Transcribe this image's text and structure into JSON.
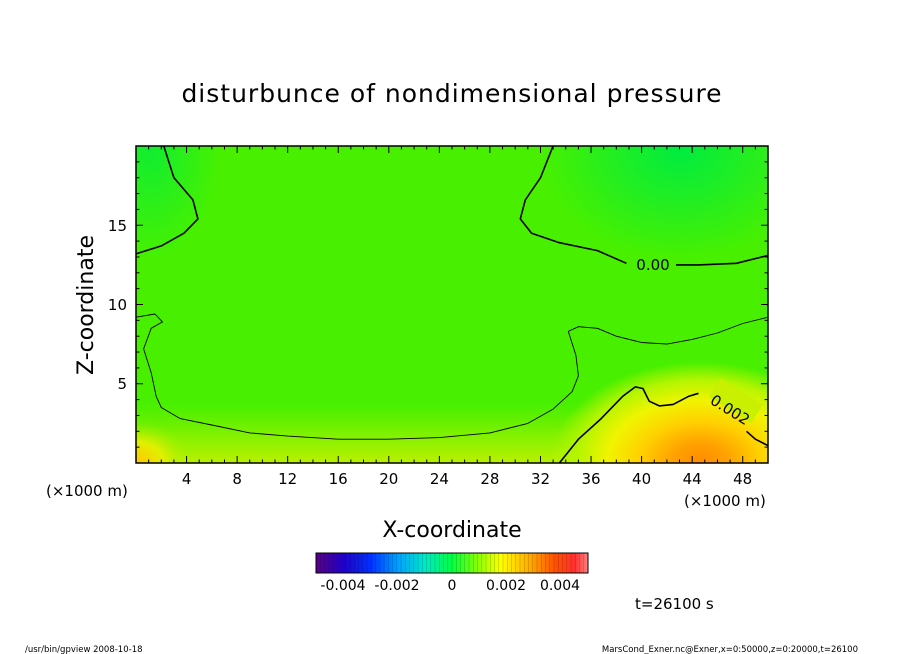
{
  "chart_data": {
    "type": "heatmap",
    "title": "disturbunce of nondimensional pressure",
    "xlabel": "X-coordinate",
    "ylabel": "Z-coordinate",
    "x_unit_left": "(×1000 m)",
    "x_unit_right": "(×1000 m)",
    "xlim": [
      0,
      50
    ],
    "ylim": [
      0,
      20
    ],
    "x_ticks": [
      "4",
      "8",
      "12",
      "16",
      "20",
      "24",
      "28",
      "32",
      "36",
      "40",
      "44",
      "48"
    ],
    "y_ticks": [
      "5",
      "10",
      "15"
    ],
    "contour_labels": [
      "0.00",
      "0.002"
    ],
    "contours": [
      {
        "level": 0.0,
        "label": "0.00",
        "segments": [
          [
            [
              0,
              13.2
            ],
            [
              2,
              13.7
            ],
            [
              3.8,
              14.5
            ],
            [
              4.9,
              15.4
            ],
            [
              4.5,
              16.6
            ],
            [
              3,
              18
            ],
            [
              2.2,
              20
            ]
          ],
          [
            [
              33,
              20
            ],
            [
              32,
              18
            ],
            [
              30.8,
              16.6
            ],
            [
              30.4,
              15.4
            ],
            [
              31.3,
              14.5
            ],
            [
              33.5,
              13.9
            ],
            [
              36.5,
              13.4
            ],
            [
              38.8,
              12.6
            ]
          ],
          [
            [
              42,
              12.5
            ],
            [
              44.5,
              12.5
            ],
            [
              47.5,
              12.6
            ],
            [
              50,
              13.1
            ]
          ]
        ]
      },
      {
        "level": 0.001,
        "label": "",
        "segments": [
          [
            [
              0,
              9.2
            ],
            [
              1.5,
              9.4
            ],
            [
              2.1,
              8.9
            ],
            [
              1.2,
              8.5
            ],
            [
              0.6,
              7.2
            ],
            [
              1.2,
              5.7
            ],
            [
              1.6,
              4.2
            ],
            [
              2,
              3.5
            ],
            [
              3.5,
              2.8
            ],
            [
              6,
              2.4
            ],
            [
              9,
              1.9
            ],
            [
              12,
              1.7
            ],
            [
              16,
              1.5
            ],
            [
              20,
              1.5
            ],
            [
              24,
              1.6
            ],
            [
              28,
              1.9
            ],
            [
              31,
              2.5
            ],
            [
              33,
              3.4
            ],
            [
              34.5,
              4.5
            ],
            [
              35,
              5.5
            ],
            [
              34.8,
              6.8
            ],
            [
              34.2,
              8.3
            ],
            [
              35,
              8.6
            ],
            [
              36.5,
              8.5
            ],
            [
              38,
              8
            ],
            [
              40,
              7.6
            ],
            [
              42,
              7.5
            ],
            [
              44,
              7.8
            ],
            [
              46,
              8.2
            ],
            [
              48,
              8.8
            ],
            [
              50,
              9.2
            ]
          ]
        ]
      },
      {
        "level": 0.002,
        "label": "0.002",
        "segments": [
          [
            [
              33.5,
              0
            ],
            [
              35,
              1.5
            ],
            [
              36.8,
              2.8
            ],
            [
              38.5,
              4.2
            ],
            [
              39.5,
              4.8
            ],
            [
              40.1,
              4.7
            ],
            [
              40.6,
              3.9
            ],
            [
              41.4,
              3.6
            ],
            [
              42.5,
              3.7
            ],
            [
              43.7,
              4.2
            ],
            [
              44.5,
              4.4
            ]
          ],
          [
            [
              48.3,
              2
            ],
            [
              49,
              1.5
            ],
            [
              50,
              1.1
            ]
          ]
        ]
      }
    ],
    "field_peak": {
      "x": 44,
      "z": 0.5,
      "value": 0.004
    },
    "colorbar": {
      "range": [
        -0.005,
        0.005
      ],
      "tick_labels": [
        "-0.004",
        "-0.002",
        "0",
        "0.002",
        "0.004"
      ],
      "tick_values": [
        -0.004,
        -0.002,
        0,
        0.002,
        0.004
      ]
    },
    "time_label": "t=26100 s",
    "footer_left": "/usr/bin/gpview   2008-10-18",
    "footer_right": "MarsCond_Exner.nc@Exner,x=0:50000,z=0:20000,t=26100"
  },
  "colors": {
    "background": "#00ff00",
    "peak": "#ff9a00"
  }
}
